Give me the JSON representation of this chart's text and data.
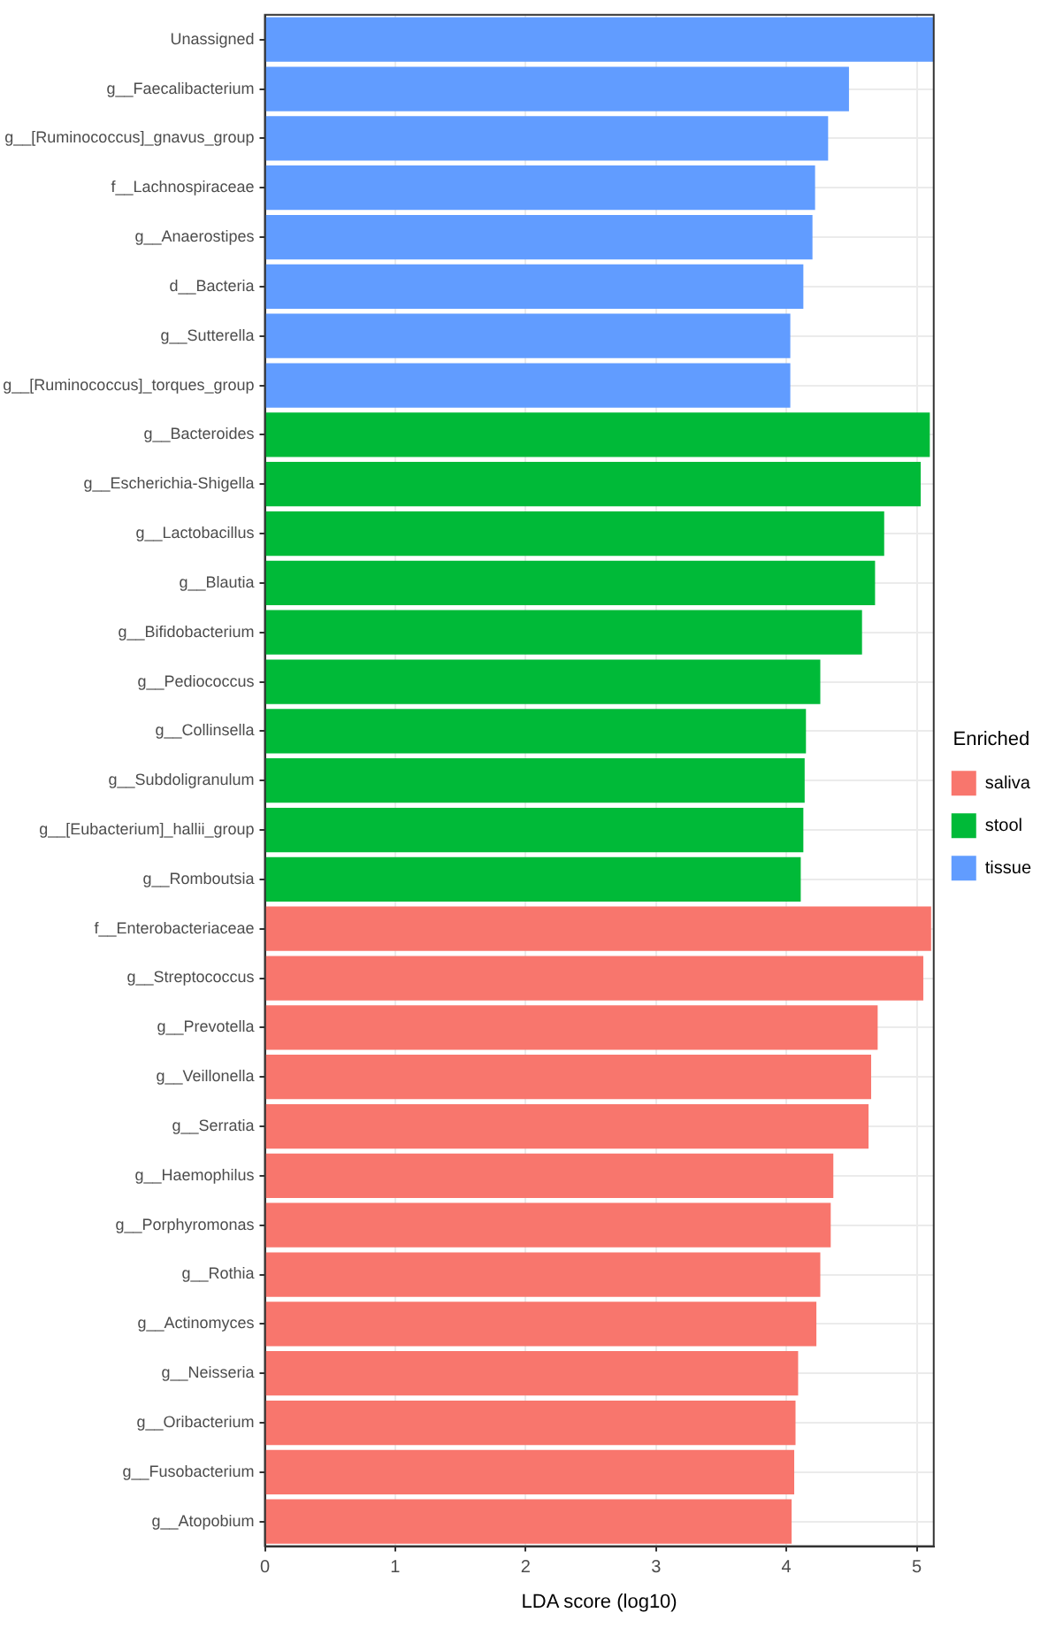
{
  "chart_data": {
    "type": "bar",
    "orientation": "horizontal",
    "xlabel": "LDA score (log10)",
    "legend_title": "Enriched",
    "categories": [
      "Unassigned",
      "g__Faecalibacterium",
      "g__[Ruminococcus]_gnavus_group",
      "f__Lachnospiraceae",
      "g__Anaerostipes",
      "d__Bacteria",
      "g__Sutterella",
      "g__[Ruminococcus]_torques_group",
      "g__Bacteroides",
      "g__Escherichia-Shigella",
      "g__Lactobacillus",
      "g__Blautia",
      "g__Bifidobacterium",
      "g__Pediococcus",
      "g__Collinsella",
      "g__Subdoligranulum",
      "g__[Eubacterium]_hallii_group",
      "g__Romboutsia",
      "f__Enterobacteriaceae",
      "g__Streptococcus",
      "g__Prevotella",
      "g__Veillonella",
      "g__Serratia",
      "g__Haemophilus",
      "g__Porphyromonas",
      "g__Rothia",
      "g__Actinomyces",
      "g__Neisseria",
      "g__Oribacterium",
      "g__Fusobacterium",
      "g__Atopobium"
    ],
    "series": [
      {
        "name": "saliva",
        "color": "#f8766d",
        "values": [
          null,
          null,
          null,
          null,
          null,
          null,
          null,
          null,
          null,
          null,
          null,
          null,
          null,
          null,
          null,
          null,
          null,
          null,
          5.11,
          5.05,
          4.7,
          4.65,
          4.63,
          4.36,
          4.34,
          4.26,
          4.23,
          4.09,
          4.07,
          4.06,
          4.04
        ]
      },
      {
        "name": "stool",
        "color": "#00ba38",
        "values": [
          null,
          null,
          null,
          null,
          null,
          null,
          null,
          null,
          5.1,
          5.03,
          4.75,
          4.68,
          4.58,
          4.26,
          4.15,
          4.14,
          4.13,
          4.11,
          null,
          null,
          null,
          null,
          null,
          null,
          null,
          null,
          null,
          null,
          null,
          null,
          null
        ]
      },
      {
        "name": "tissue",
        "color": "#619cff",
        "values": [
          5.13,
          4.48,
          4.32,
          4.22,
          4.2,
          4.13,
          4.03,
          4.03,
          null,
          null,
          null,
          null,
          null,
          null,
          null,
          null,
          null,
          null,
          null,
          null,
          null,
          null,
          null,
          null,
          null,
          null,
          null,
          null,
          null,
          null,
          null
        ]
      }
    ],
    "xlim": [
      0,
      5.13
    ],
    "xticks": [
      0,
      1,
      2,
      3,
      4,
      5
    ],
    "grid": true,
    "legend": "right"
  }
}
